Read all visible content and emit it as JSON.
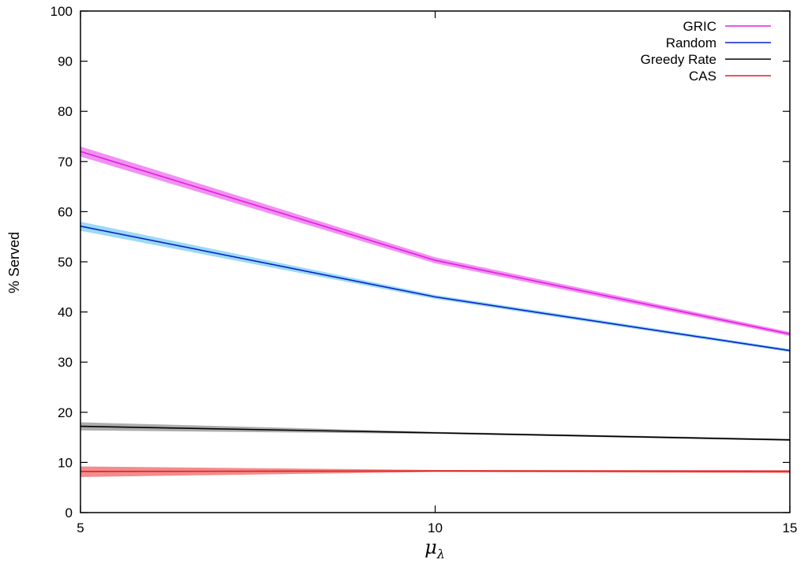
{
  "chart_data": {
    "type": "line",
    "title": "",
    "xlabel": "μ",
    "xlabel_subscript": "λ",
    "ylabel": "% Served",
    "xlim": [
      5,
      15
    ],
    "ylim": [
      0,
      100
    ],
    "xticks": [
      "5",
      "10",
      "15"
    ],
    "xtick_values": [
      5,
      10,
      15
    ],
    "yticks": [
      "0",
      "10",
      "20",
      "30",
      "40",
      "50",
      "60",
      "70",
      "80",
      "90",
      "100"
    ],
    "ytick_values": [
      0,
      10,
      20,
      30,
      40,
      50,
      60,
      70,
      80,
      90,
      100
    ],
    "grid": false,
    "legend_position": "top-right",
    "x": [
      5,
      10,
      15
    ],
    "series": [
      {
        "name": "GRIC",
        "color": "#e020e0",
        "band_color": "#f07cf0",
        "values": [
          72,
          50.3,
          35.6
        ],
        "lower": [
          71,
          49.7,
          35.2
        ],
        "upper": [
          73,
          50.9,
          36.0
        ]
      },
      {
        "name": "Random",
        "color": "#0a20c8",
        "band_color": "#88d4f5",
        "values": [
          57.1,
          43,
          32.3
        ],
        "lower": [
          56.2,
          42.6,
          32.0
        ],
        "upper": [
          58.0,
          43.4,
          32.6
        ]
      },
      {
        "name": "Greedy Rate",
        "color": "#000000",
        "band_color": "#9e9e9e",
        "values": [
          17.2,
          15.9,
          14.5
        ],
        "lower": [
          16.4,
          15.7,
          14.3
        ],
        "upper": [
          18.0,
          16.1,
          14.7
        ]
      },
      {
        "name": "CAS",
        "color": "#e0201e",
        "band_color": "#f07878",
        "values": [
          8.2,
          8.3,
          8.2
        ],
        "lower": [
          7.1,
          8.1,
          7.9
        ],
        "upper": [
          9.2,
          8.5,
          8.5
        ]
      }
    ]
  }
}
